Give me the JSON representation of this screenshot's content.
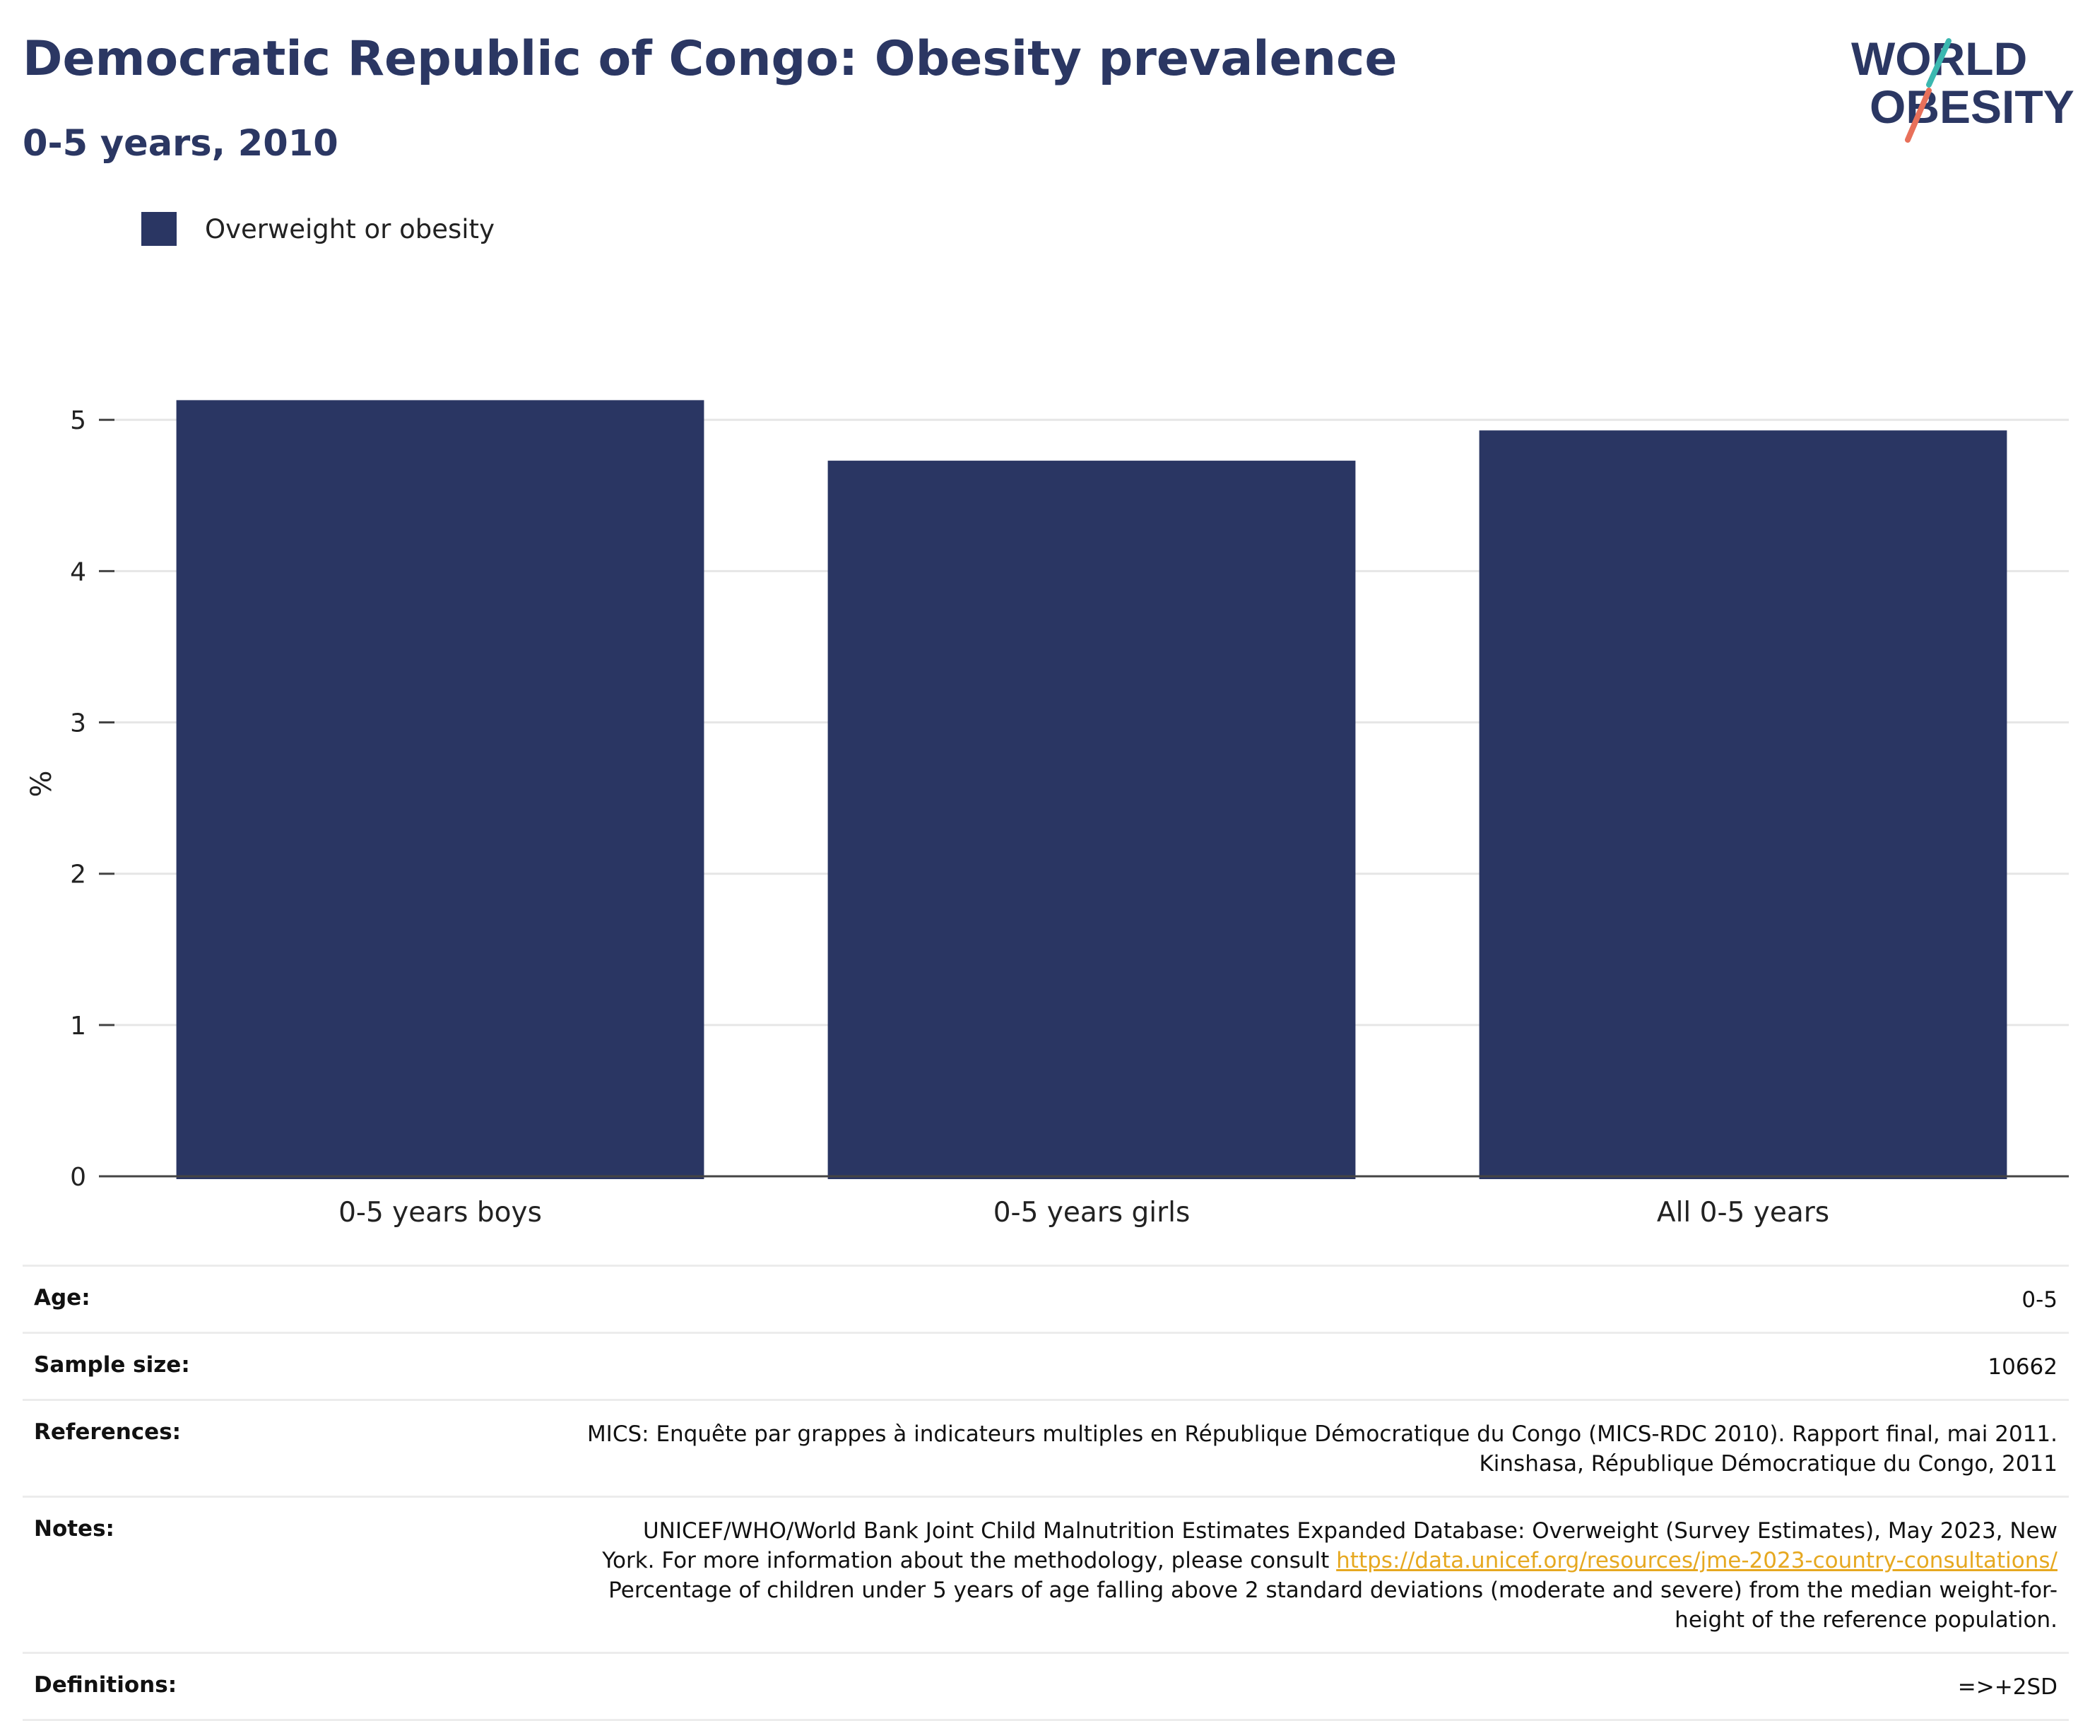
{
  "header": {
    "title": "Democratic Republic of Congo: Obesity prevalence",
    "subtitle": "0-5 years, 2010"
  },
  "logo": {
    "line1": "WORLD",
    "line2": "OBESITY",
    "colors": {
      "text": "#2b3763",
      "slash_top": "#3bb8b0",
      "slash_bottom": "#e8705a"
    }
  },
  "legend": {
    "label": "Overweight or obesity",
    "color": "#2a3663"
  },
  "chart_data": {
    "type": "bar",
    "categories": [
      "0-5 years boys",
      "0-5 years girls",
      "All 0-5 years"
    ],
    "series": [
      {
        "name": "Overweight or obesity",
        "values": [
          5.13,
          4.73,
          4.93
        ],
        "color": "#2a3663"
      }
    ],
    "ylabel": "%",
    "ylim": [
      0,
      5.3
    ],
    "yticks": [
      "0",
      "1",
      "2",
      "3",
      "4",
      "5"
    ],
    "grid": true,
    "legend_position": "top-left"
  },
  "meta": {
    "age": {
      "label": "Age:",
      "value": "0-5"
    },
    "sample_size": {
      "label": "Sample size:",
      "value": "10662"
    },
    "references": {
      "label": "References:",
      "line1": "MICS: Enquête par grappes à indicateurs multiples en République Démocratique du Congo (MICS-RDC 2010). Rapport final, mai 2011.",
      "line2": "Kinshasa, République Démocratique du Congo, 2011"
    },
    "notes": {
      "label": "Notes:",
      "line1": "UNICEF/WHO/World Bank Joint Child Malnutrition Estimates Expanded Database: Overweight (Survey Estimates), May 2023, New",
      "line2_prefix": "York. For more information about the methodology, please consult ",
      "link": "https://data.unicef.org/resources/jme-2023-country-consultations/",
      "line3": "Percentage of children under 5 years of age falling above 2 standard deviations (moderate and severe) from the median weight-for-",
      "line4": "height of the reference population."
    },
    "definitions": {
      "label": "Definitions:",
      "value": "=>+2SD"
    }
  }
}
